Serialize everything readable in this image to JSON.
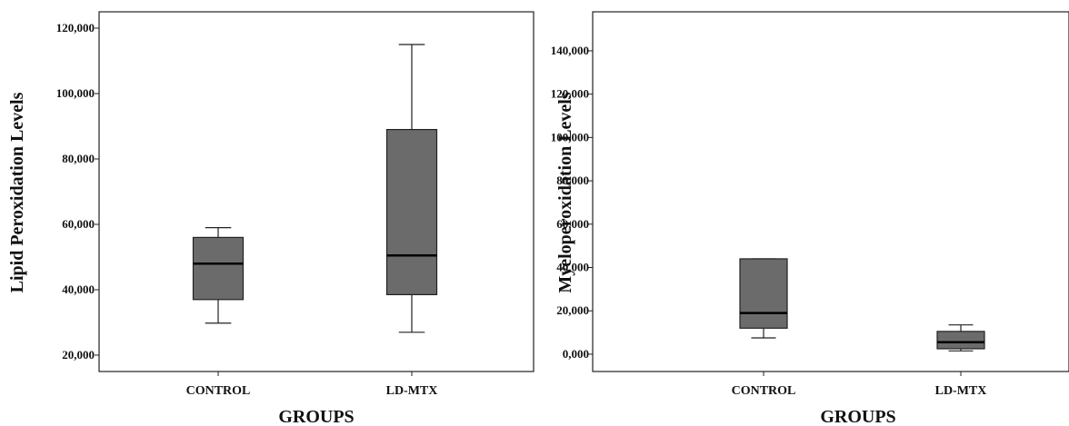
{
  "chart_data": [
    {
      "type": "box",
      "xlabel": "GROUPS",
      "ylabel": "Lipid Peroxidation Levels",
      "categories": [
        "CONTROL",
        "LD-MTX"
      ],
      "yticks": [
        "20,000",
        "40,000",
        "60,000",
        "80,000",
        "100,000",
        "120,000"
      ],
      "ylim": [
        15,
        125
      ],
      "boxes": [
        {
          "category": "CONTROL",
          "min": 29.8,
          "q1": 37.0,
          "median": 48.0,
          "q3": 56.0,
          "max": 59.0
        },
        {
          "category": "LD-MTX",
          "min": 27.0,
          "q1": 38.5,
          "median": 50.5,
          "q3": 89.0,
          "max": 115.0
        }
      ],
      "box_color": "#6b6b6b",
      "grid": false
    },
    {
      "type": "box",
      "xlabel": "GROUPS",
      "ylabel": "Myeloperoxidation Levels",
      "categories": [
        "CONTROL",
        "LD-MTX"
      ],
      "yticks": [
        "0,000",
        "20,000",
        "40,000",
        "60,000",
        "80,000",
        "100,000",
        "120,000",
        "140,000"
      ],
      "ylim": [
        -8,
        158
      ],
      "boxes": [
        {
          "category": "CONTROL",
          "min": 7.5,
          "q1": 12.0,
          "median": 19.0,
          "q3": 44.0,
          "max": 44.0
        },
        {
          "category": "LD-MTX",
          "min": 1.5,
          "q1": 2.5,
          "median": 5.5,
          "q3": 10.5,
          "max": 13.5
        }
      ],
      "box_color": "#6b6b6b",
      "grid": false
    }
  ]
}
